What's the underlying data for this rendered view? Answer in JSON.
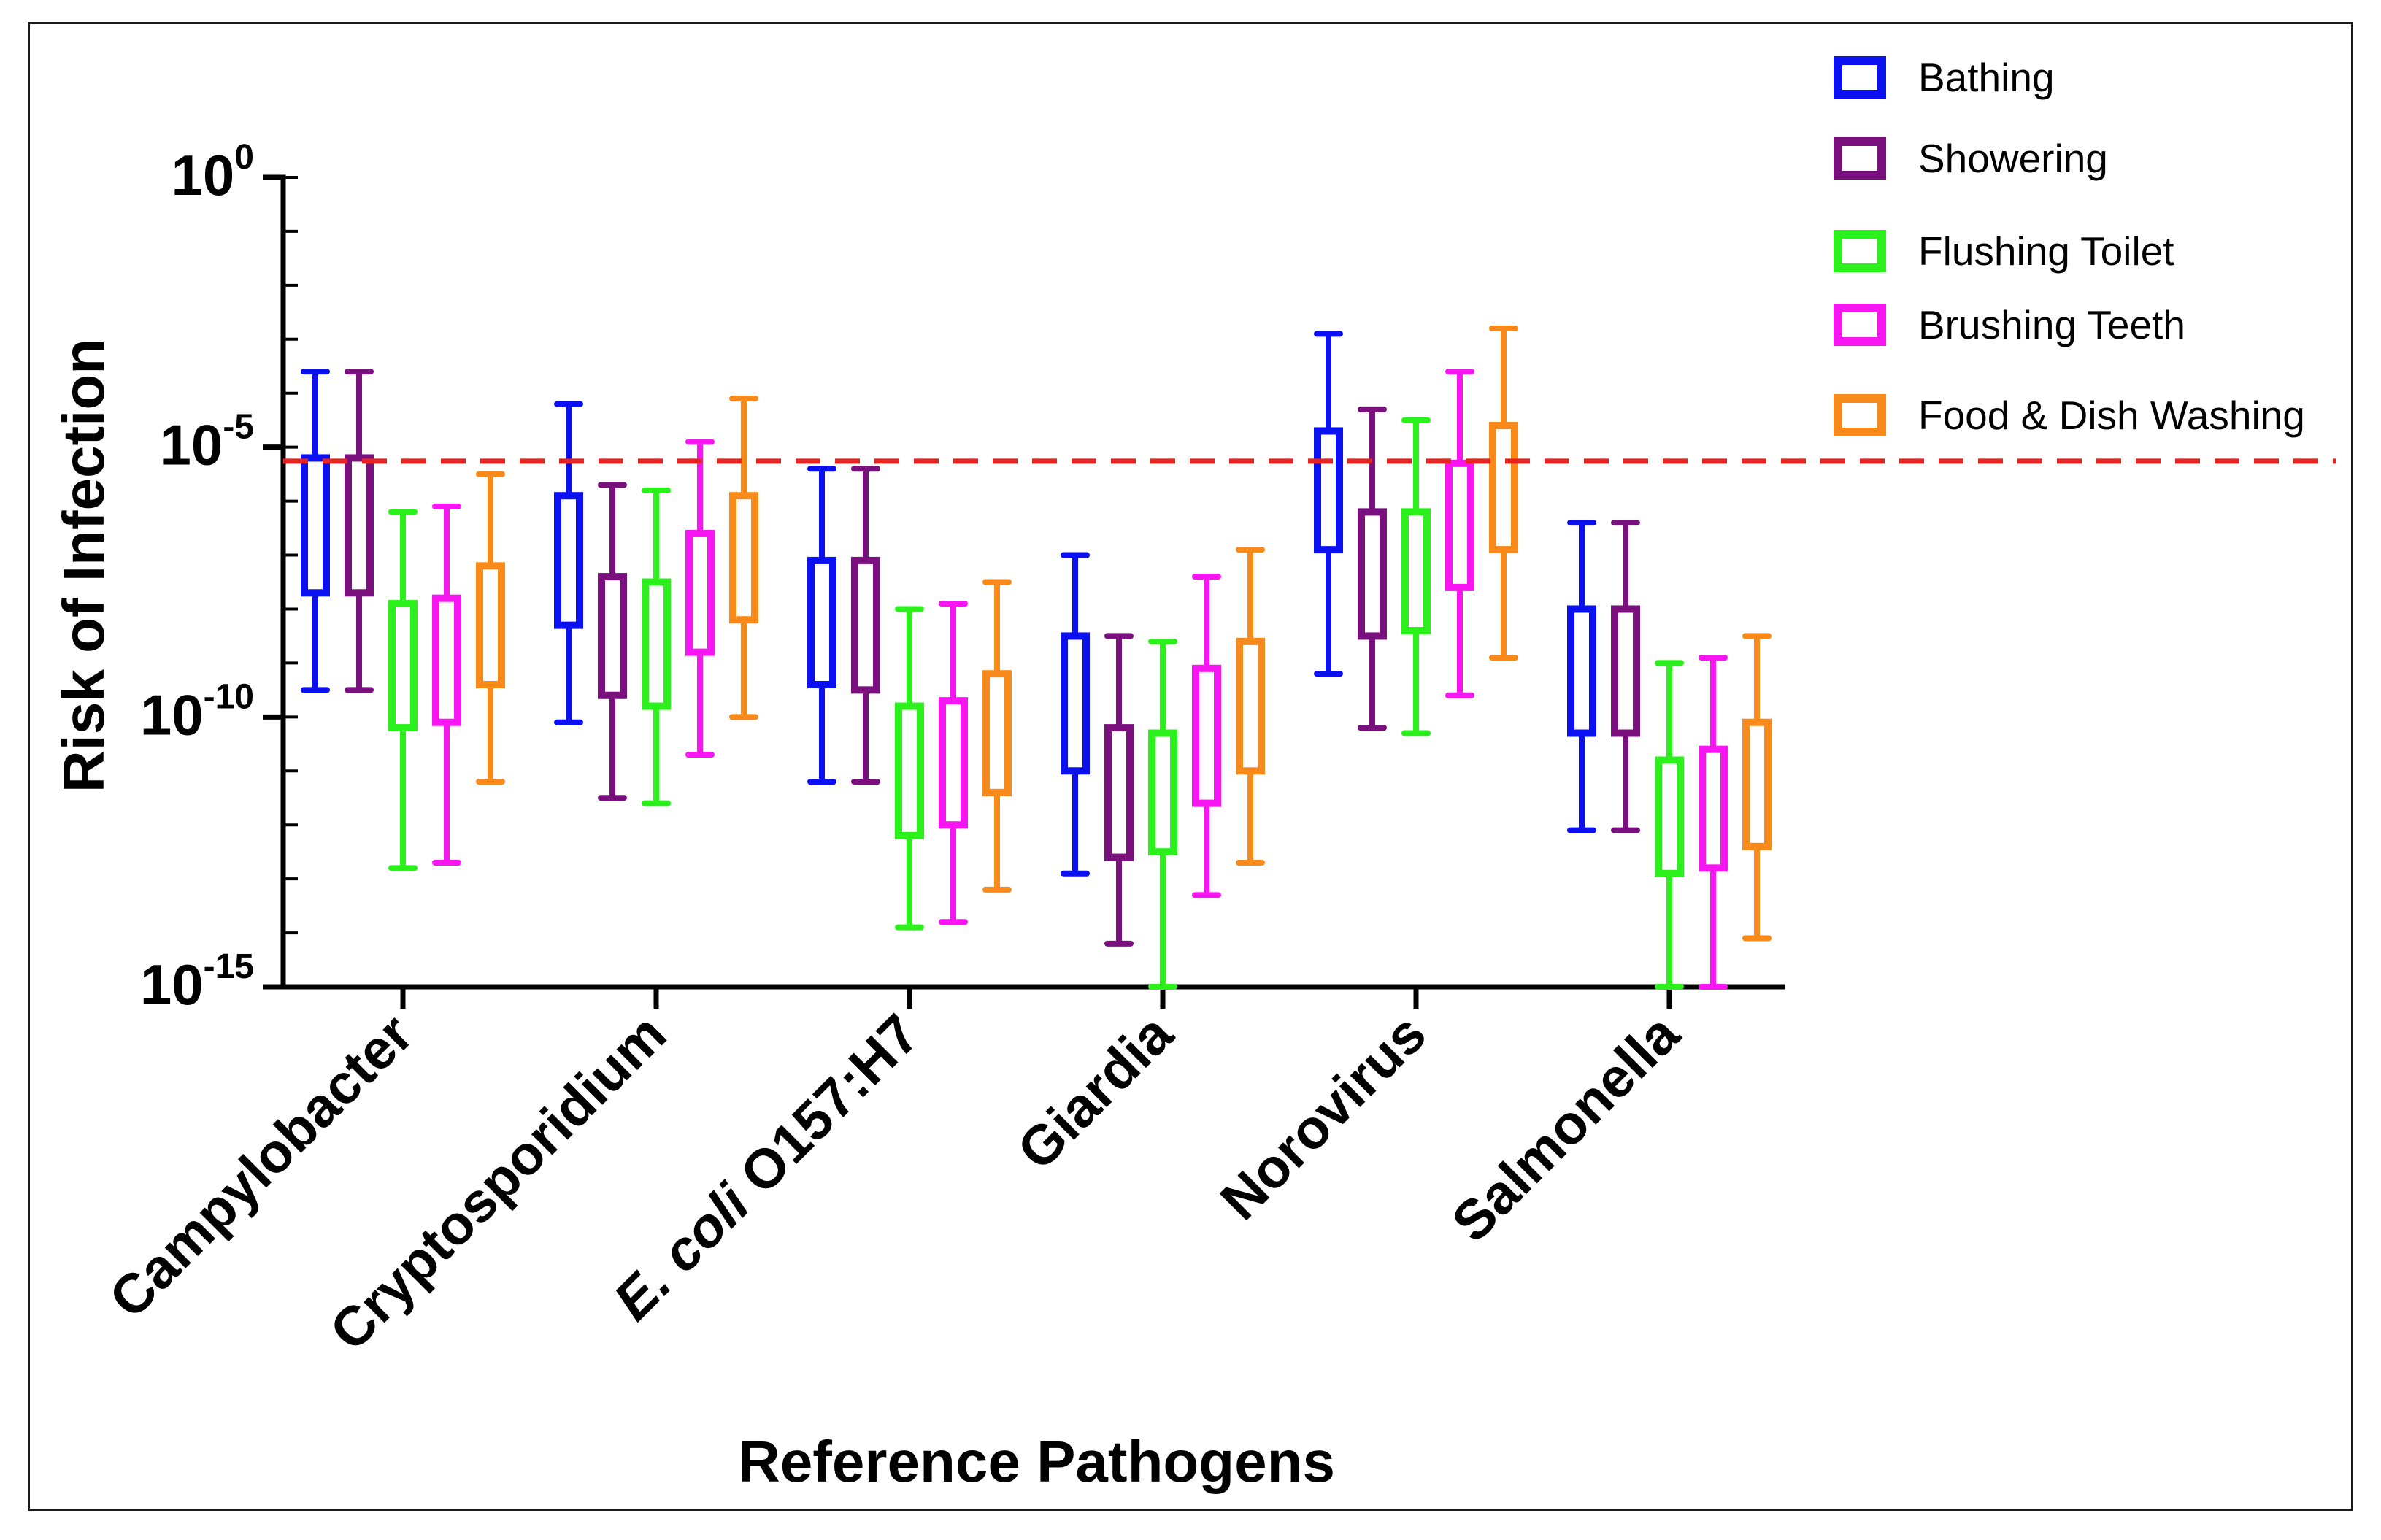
{
  "chart_data": {
    "type": "boxplot",
    "title": "",
    "xlabel": "Reference Pathogens",
    "ylabel": "Risk of Infection",
    "yscale": "log10",
    "ylim": [
      1e-15,
      1
    ],
    "yticks": [
      {
        "base": "10",
        "exp": "0",
        "value": 1
      },
      {
        "base": "10",
        "exp": "-5",
        "value": 1e-05
      },
      {
        "base": "10",
        "exp": "-10",
        "value": 1e-10
      },
      {
        "base": "10",
        "exp": "-15",
        "value": 1e-15
      }
    ],
    "categories": [
      {
        "label": "Campylobacter",
        "italic": "",
        "rest": "Campylobacter"
      },
      {
        "label": "Cryptosporidium",
        "italic": "",
        "rest": "Cryptosporidium"
      },
      {
        "label": "E. coli O157:H7",
        "italic": "E. coli",
        "rest": " O157:H7"
      },
      {
        "label": "Giardia",
        "italic": "",
        "rest": "Giardia"
      },
      {
        "label": "Norovirus",
        "italic": "",
        "rest": "Norovirus"
      },
      {
        "label": "Salmonella",
        "italic": "",
        "rest": "Salmonella"
      }
    ],
    "reference_line": {
      "value": 5.5e-06,
      "color": "#e8231f",
      "style": "dashed"
    },
    "series": [
      {
        "name": "Bathing",
        "color": "#0b10f0",
        "log10_min_q1_q3_max": [
          [
            -9.5,
            -7.7,
            -5.2,
            -3.6
          ],
          [
            -10.1,
            -8.3,
            -5.9,
            -4.2
          ],
          [
            -11.2,
            -9.4,
            -7.1,
            -5.4
          ],
          [
            -12.9,
            -11.0,
            -8.5,
            -7.0
          ],
          [
            -9.2,
            -6.9,
            -4.7,
            -2.9
          ],
          [
            -12.1,
            -10.3,
            -8.0,
            -6.4
          ]
        ]
      },
      {
        "name": "Showering",
        "color": "#7a0f7e",
        "log10_min_q1_q3_max": [
          [
            -9.5,
            -7.7,
            -5.2,
            -3.6
          ],
          [
            -11.5,
            -9.6,
            -7.4,
            -5.7
          ],
          [
            -11.2,
            -9.5,
            -7.1,
            -5.4
          ],
          [
            -14.2,
            -12.6,
            -10.2,
            -8.5
          ],
          [
            -10.2,
            -8.5,
            -6.2,
            -4.3
          ],
          [
            -12.1,
            -10.3,
            -8.0,
            -6.4
          ]
        ]
      },
      {
        "name": "Flushing Toilet",
        "color": "#2bf01c",
        "log10_min_q1_q3_max": [
          [
            -12.8,
            -10.2,
            -7.9,
            -6.2
          ],
          [
            -11.6,
            -9.8,
            -7.5,
            -5.8
          ],
          [
            -13.9,
            -12.2,
            -9.8,
            -8.0
          ],
          [
            -15.0,
            -12.5,
            -10.3,
            -8.6
          ],
          [
            -10.3,
            -8.4,
            -6.2,
            -4.5
          ],
          [
            -15.0,
            -12.9,
            -10.8,
            -9.0
          ]
        ]
      },
      {
        "name": "Brushing Teeth",
        "color": "#f716f2",
        "log10_min_q1_q3_max": [
          [
            -12.7,
            -10.1,
            -7.8,
            -6.1
          ],
          [
            -10.7,
            -8.8,
            -6.6,
            -4.9
          ],
          [
            -13.8,
            -12.0,
            -9.7,
            -7.9
          ],
          [
            -13.3,
            -11.6,
            -9.1,
            -7.4
          ],
          [
            -9.6,
            -7.6,
            -5.3,
            -3.6
          ],
          [
            -15.0,
            -12.8,
            -10.6,
            -8.9
          ]
        ]
      },
      {
        "name": "Food & Dish Washing",
        "color": "#f78a1a",
        "log10_min_q1_q3_max": [
          [
            -11.2,
            -9.4,
            -7.2,
            -5.5
          ],
          [
            -10.0,
            -8.2,
            -5.9,
            -4.1
          ],
          [
            -13.2,
            -11.4,
            -9.2,
            -7.5
          ],
          [
            -12.7,
            -11.0,
            -8.6,
            -6.9
          ],
          [
            -8.9,
            -6.9,
            -4.6,
            -2.8
          ],
          [
            -14.1,
            -12.4,
            -10.1,
            -8.5
          ]
        ]
      }
    ]
  }
}
